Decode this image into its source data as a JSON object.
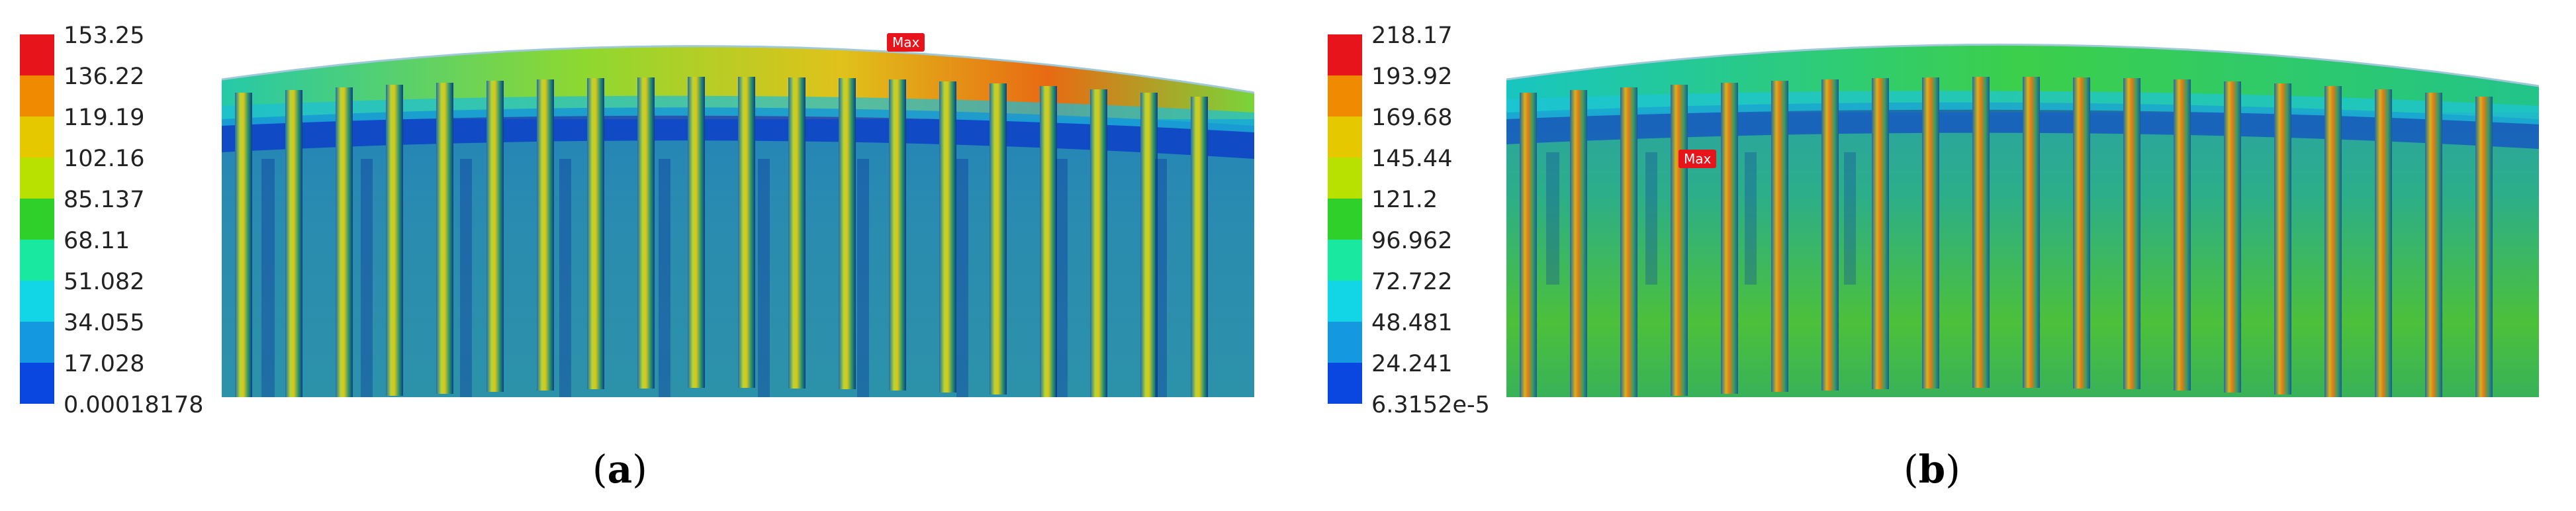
{
  "panel_a": {
    "caption_open": "(",
    "caption_letter": "a",
    "caption_close": ")",
    "legend": [
      "153.25",
      "136.22",
      "119.19",
      "102.16",
      "85.137",
      "68.11",
      "51.082",
      "34.055",
      "17.028",
      "0.00018178"
    ],
    "max_label": "Max"
  },
  "panel_b": {
    "caption_open": "(",
    "caption_letter": "b",
    "caption_close": ")",
    "legend": [
      "218.17",
      "193.92",
      "169.68",
      "145.44",
      "121.2",
      "96.962",
      "72.722",
      "48.481",
      "24.241",
      "6.3152e-5"
    ],
    "max_label": "Max"
  },
  "legend_colors": [
    "#e8141c",
    "#f08a00",
    "#e6c800",
    "#b8e000",
    "#2fd02a",
    "#19e8a0",
    "#12d6e6",
    "#1499e0",
    "#0a46e0",
    "#0010c8"
  ]
}
